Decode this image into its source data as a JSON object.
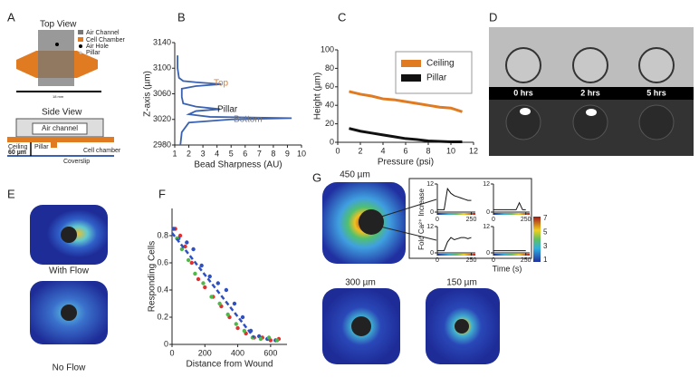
{
  "panel_labels": [
    "A",
    "B",
    "C",
    "D",
    "E",
    "F",
    "G"
  ],
  "panel_a": {
    "top_view": "Top View",
    "legend": [
      "Air Channel",
      "Cell Chamber",
      "Air Hole",
      "Pillar"
    ],
    "width": "18 mm",
    "side_view": "Side View",
    "air_channel": "Air channel",
    "ceiling": "Ceiling",
    "thickness": "60 µm",
    "pillar": "Pillar",
    "cell_chamber": "Cell chamber",
    "coverslip": "Coverslip"
  },
  "panel_d": {
    "times": [
      "0 hrs",
      "2 hrs",
      "5 hrs"
    ]
  },
  "panel_e": {
    "labels": [
      "With Flow",
      "No Flow"
    ]
  },
  "panel_g": {
    "maps": [
      "450 µm",
      "300 µm",
      "150 µm"
    ],
    "y_label": "Fold Ca²⁺ Increase",
    "x_label": "Time (s)",
    "colorbar_ticks": [
      1,
      3,
      5,
      7
    ]
  },
  "chart_data": [
    {
      "type": "line",
      "x_label": "Bead Sharpness (AU)",
      "y_label": "Z-axis (µm)",
      "color": "#3a62b0",
      "x": [
        1.2,
        1.2,
        1.3,
        1.6,
        2.5,
        4.3,
        2.5,
        1.5,
        1.5,
        1.6,
        2.5,
        4.2,
        2.5,
        2.0,
        3.5,
        9.3,
        5,
        2.0,
        1.5,
        1.4
      ],
      "values": [
        3120,
        3100,
        3085,
        3080,
        3078,
        3075,
        3072,
        3068,
        3055,
        3045,
        3040,
        3036,
        3033,
        3028,
        3024,
        3022,
        3020,
        3015,
        3000,
        2980
      ],
      "xlim": [
        1,
        10
      ],
      "xticks": [
        1,
        2,
        3,
        4,
        5,
        6,
        7,
        8,
        9,
        10
      ],
      "ylim": [
        2980,
        3140
      ],
      "yticks": [
        2980,
        3020,
        3060,
        3100,
        3140
      ],
      "annotations": [
        "Top",
        "Pillar",
        "Bottom"
      ]
    },
    {
      "type": "line",
      "x_label": "Pressure (psi)",
      "y_label": "Height (µm)",
      "legend": "upper right",
      "x": [
        1,
        2,
        3,
        4,
        5,
        6,
        7,
        8,
        9,
        10,
        11
      ],
      "series": [
        {
          "name": "Ceiling",
          "color": "#e07b22",
          "values": [
            55,
            52,
            50,
            47,
            46,
            44,
            42,
            40,
            38,
            37,
            33
          ]
        },
        {
          "name": "Pillar",
          "color": "#111111",
          "values": [
            15,
            12,
            10,
            8,
            6,
            4,
            3,
            1.5,
            1,
            0.5,
            0.5
          ]
        }
      ],
      "xlim": [
        0,
        12
      ],
      "xticks": [
        0,
        2,
        4,
        6,
        8,
        10,
        12
      ],
      "ylim": [
        0,
        100
      ],
      "yticks": [
        0,
        20,
        40,
        60,
        80,
        100
      ]
    },
    {
      "type": "scatter",
      "x_label": "Distance from Wound",
      "y_label": "Responding Cells",
      "series": [
        {
          "color": "#e03030",
          "x": [
            20,
            50,
            80,
            120,
            160,
            200,
            250,
            300,
            350,
            400,
            450,
            500,
            550,
            600,
            650
          ],
          "values": [
            0.85,
            0.8,
            0.72,
            0.6,
            0.48,
            0.42,
            0.35,
            0.28,
            0.2,
            0.12,
            0.08,
            0.05,
            0.05,
            0.03,
            0.04
          ]
        },
        {
          "color": "#3050c0",
          "x": [
            10,
            40,
            90,
            130,
            180,
            230,
            280,
            330,
            380,
            430,
            480,
            530,
            580,
            630
          ],
          "values": [
            0.85,
            0.78,
            0.75,
            0.7,
            0.58,
            0.5,
            0.45,
            0.4,
            0.3,
            0.2,
            0.1,
            0.06,
            0.04,
            0.03
          ]
        },
        {
          "color": "#50b848",
          "x": [
            30,
            60,
            100,
            140,
            190,
            240,
            290,
            340,
            390,
            440,
            490,
            540,
            590,
            640
          ],
          "values": [
            0.78,
            0.7,
            0.62,
            0.52,
            0.45,
            0.35,
            0.3,
            0.22,
            0.15,
            0.1,
            0.05,
            0.04,
            0.05,
            0.03
          ]
        }
      ],
      "fit_line": {
        "color": "#3050c0",
        "x": [
          0,
          500
        ],
        "values": [
          0.82,
          0.05
        ]
      },
      "xlim": [
        0,
        700
      ],
      "xticks": [
        0,
        200,
        400,
        600
      ],
      "ylim": [
        0,
        1
      ],
      "yticks": [
        0,
        0.2,
        0.4,
        0.6,
        0.8
      ]
    },
    {
      "type": "line",
      "color": "#111111",
      "x": [
        0,
        25,
        50,
        75,
        100,
        125,
        150,
        175,
        200,
        225,
        250
      ],
      "values": [
        1,
        1,
        1,
        10,
        8,
        7,
        6.5,
        6,
        5.5,
        5,
        5
      ],
      "xlim": [
        0,
        280
      ],
      "xticks": [
        0,
        250
      ],
      "ylim": [
        0,
        12
      ],
      "yticks": [
        0,
        12
      ]
    },
    {
      "type": "line",
      "color": "#111111",
      "x": [
        0,
        25,
        50,
        75,
        100,
        125,
        150,
        175,
        200,
        225,
        250
      ],
      "values": [
        1,
        1,
        1,
        1,
        1,
        1,
        1,
        1,
        4,
        1,
        1
      ],
      "xlim": [
        0,
        280
      ],
      "xticks": [
        0,
        250
      ],
      "ylim": [
        0,
        12
      ],
      "yticks": [
        0,
        12
      ]
    },
    {
      "type": "line",
      "color": "#111111",
      "x": [
        0,
        25,
        50,
        75,
        100,
        125,
        150,
        175,
        200,
        225,
        250
      ],
      "values": [
        1,
        1,
        1,
        5,
        7,
        6,
        6.5,
        7,
        7,
        6.5,
        7
      ],
      "xlim": [
        0,
        280
      ],
      "xticks": [
        0,
        250
      ],
      "ylim": [
        0,
        12
      ],
      "yticks": [
        0,
        12
      ]
    },
    {
      "type": "line",
      "color": "#111111",
      "x": [
        0,
        25,
        50,
        75,
        100,
        125,
        150,
        175,
        200,
        225,
        250
      ],
      "values": [
        1,
        1,
        1,
        1,
        1,
        1,
        1,
        1,
        1,
        1,
        1
      ],
      "xlim": [
        0,
        280
      ],
      "xticks": [
        0,
        250
      ],
      "ylim": [
        0,
        12
      ],
      "yticks": [
        0,
        12
      ]
    }
  ]
}
